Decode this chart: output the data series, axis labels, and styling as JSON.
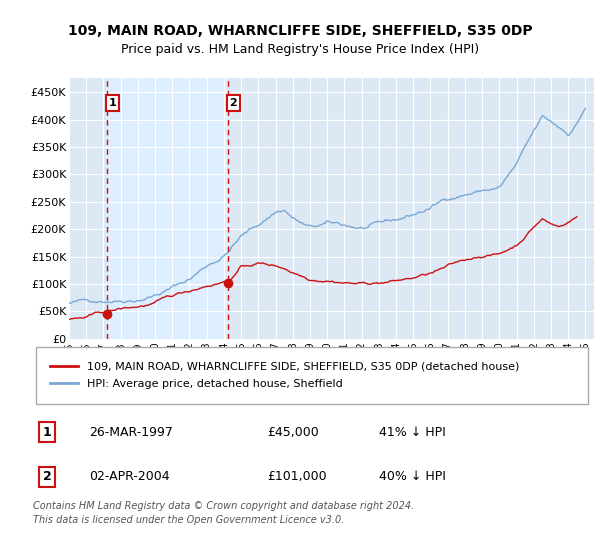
{
  "title": "109, MAIN ROAD, WHARNCLIFFE SIDE, SHEFFIELD, S35 0DP",
  "subtitle": "Price paid vs. HM Land Registry's House Price Index (HPI)",
  "ylabel_ticks": [
    "£0",
    "£50K",
    "£100K",
    "£150K",
    "£200K",
    "£250K",
    "£300K",
    "£350K",
    "£400K",
    "£450K"
  ],
  "ytick_values": [
    0,
    50000,
    100000,
    150000,
    200000,
    250000,
    300000,
    350000,
    400000,
    450000
  ],
  "ylim": [
    0,
    475000
  ],
  "xlim_start": 1995.0,
  "xlim_end": 2025.5,
  "xtick_years": [
    1995,
    1996,
    1997,
    1998,
    1999,
    2000,
    2001,
    2002,
    2003,
    2004,
    2005,
    2006,
    2007,
    2008,
    2009,
    2010,
    2011,
    2012,
    2013,
    2014,
    2015,
    2016,
    2017,
    2018,
    2019,
    2020,
    2021,
    2022,
    2023,
    2024,
    2025
  ],
  "hpi_color": "#7aa8d4",
  "property_color": "#cc1111",
  "purchase1_x": 1997.23,
  "purchase1_y": 45000,
  "purchase1_label": "1",
  "purchase2_x": 2004.25,
  "purchase2_y": 101000,
  "purchase2_label": "2",
  "shade_color": "#ddeeff",
  "legend_property": "109, MAIN ROAD, WHARNCLIFFE SIDE, SHEFFIELD, S35 0DP (detached house)",
  "legend_hpi": "HPI: Average price, detached house, Sheffield",
  "table_row1": [
    "1",
    "26-MAR-1997",
    "£45,000",
    "41% ↓ HPI"
  ],
  "table_row2": [
    "2",
    "02-APR-2004",
    "£101,000",
    "40% ↓ HPI"
  ],
  "footer": "Contains HM Land Registry data © Crown copyright and database right 2024.\nThis data is licensed under the Open Government Licence v3.0.",
  "background_color": "#dce9f5",
  "plot_background": "#ffffff",
  "grid_color": "#ffffff",
  "title_fontsize": 10,
  "subtitle_fontsize": 9
}
